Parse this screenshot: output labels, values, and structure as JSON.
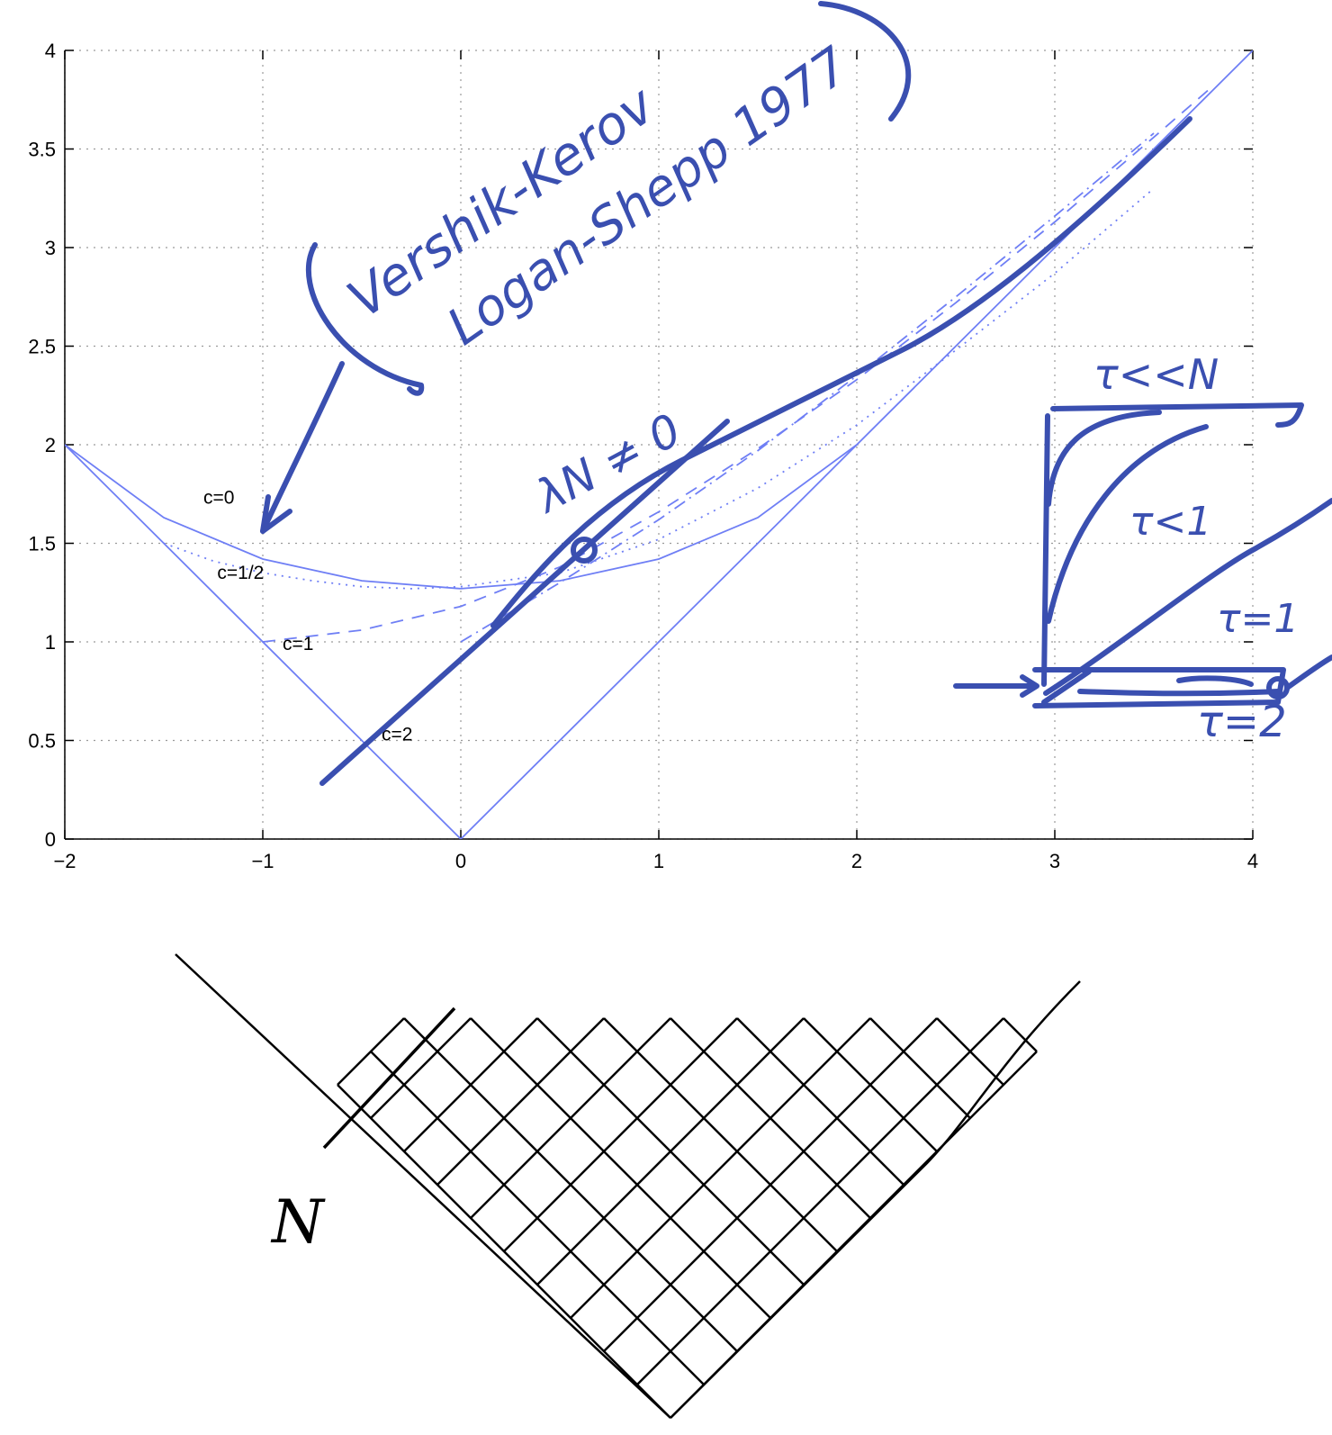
{
  "colors": {
    "curve": "#6f7ff5",
    "ink": "#3a4fb0",
    "sketch": "#000000",
    "grid": "#9a9a9a"
  },
  "chart_data": {
    "type": "line",
    "title": "",
    "xlabel": "",
    "ylabel": "",
    "xlim": [
      -2,
      4
    ],
    "ylim": [
      0,
      4
    ],
    "grid": true,
    "x_ticks": [
      "−2",
      "−1",
      "0",
      "1",
      "2",
      "3",
      "4"
    ],
    "y_ticks": [
      "0",
      "0.5",
      "1",
      "1.5",
      "2",
      "2.5",
      "3",
      "3.5",
      "4"
    ],
    "series": [
      {
        "name": "c=0",
        "style": "solid",
        "x": [
          -2,
          -1.5,
          -1,
          -0.5,
          0,
          0.5,
          1,
          1.5,
          2
        ],
        "y": [
          2,
          1.63,
          1.42,
          1.31,
          1.27,
          1.31,
          1.42,
          1.63,
          2
        ]
      },
      {
        "name": "c=1/2",
        "style": "dotted",
        "x": [
          -1.5,
          -1.25,
          -1,
          -0.75,
          -0.5,
          -0.25,
          0,
          0.5,
          1,
          1.5,
          2,
          2.5,
          3,
          3.5
        ],
        "y": [
          1.5,
          1.41,
          1.35,
          1.31,
          1.28,
          1.27,
          1.28,
          1.35,
          1.52,
          1.78,
          2.1,
          2.48,
          2.87,
          3.3
        ]
      },
      {
        "name": "c=1",
        "style": "dashed",
        "x": [
          -1,
          -0.5,
          0,
          0.5,
          1,
          1.5,
          2,
          2.5,
          3,
          3.5,
          3.8
        ],
        "y": [
          1.0,
          1.06,
          1.18,
          1.38,
          1.66,
          1.98,
          2.33,
          2.72,
          3.13,
          3.56,
          3.82
        ]
      },
      {
        "name": "c=2",
        "style": "dashdot",
        "x": [
          0,
          0.5,
          1,
          1.5,
          2,
          2.5,
          3,
          3.5
        ],
        "y": [
          1.0,
          1.3,
          1.62,
          1.97,
          2.35,
          2.75,
          3.16,
          3.58
        ]
      },
      {
        "name": "",
        "style": "solid",
        "x": [
          -2,
          0,
          4
        ],
        "y": [
          2,
          0,
          4
        ]
      }
    ],
    "curve_labels": [
      {
        "text": "c=0",
        "x": -1.3,
        "y": 1.7
      },
      {
        "text": "c=1/2",
        "x": -1.23,
        "y": 1.32
      },
      {
        "text": "c=1",
        "x": -0.9,
        "y": 0.96
      },
      {
        "text": "c=2",
        "x": -0.4,
        "y": 0.5
      }
    ]
  },
  "annotations": {
    "vershik_kerov": "Vershik-Kerov",
    "logan_shepp": "Logan-Shepp 1977",
    "lambda_note": "λN ≠ 0",
    "tau_much_less_N": "τ<<N",
    "tau_less_1": "τ<1",
    "tau_eq_1": "τ=1",
    "tau_eq_2": "τ=2",
    "n_label": "N"
  }
}
